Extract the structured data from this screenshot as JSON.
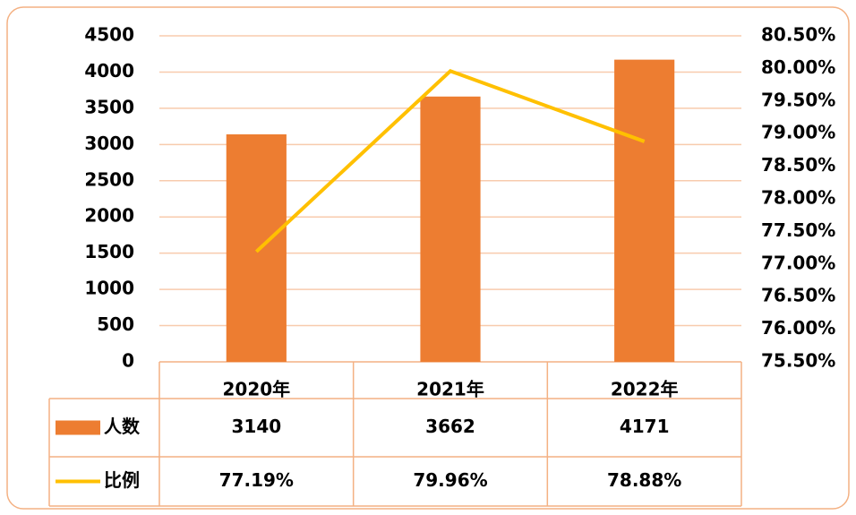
{
  "chart_data": {
    "type": "bar",
    "categories": [
      "2020年",
      "2021年",
      "2022年"
    ],
    "series": [
      {
        "name": "人数",
        "type": "bar",
        "color": "#ed7d31",
        "values": [
          3140,
          3662,
          4171
        ]
      },
      {
        "name": "比例",
        "type": "line",
        "color": "#ffc000",
        "axis": "y2",
        "values": [
          77.19,
          79.96,
          78.88
        ],
        "value_labels": [
          "77.19%",
          "79.96%",
          "78.88%"
        ]
      }
    ],
    "ylim": [
      0,
      4500
    ],
    "yticks": [
      0,
      500,
      1000,
      1500,
      2000,
      2500,
      3000,
      3500,
      4000,
      4500
    ],
    "y2lim": [
      75.5,
      80.5
    ],
    "y2ticks": [
      {
        "value": 75.5,
        "label": "75.50%"
      },
      {
        "value": 76,
        "label": "76.00%"
      },
      {
        "value": 76.5,
        "label": "76.50%"
      },
      {
        "value": 77,
        "label": "77.00%"
      },
      {
        "value": 77.5,
        "label": "77.50%"
      },
      {
        "value": 78,
        "label": "78.00%"
      },
      {
        "value": 78.5,
        "label": "78.50%"
      },
      {
        "value": 79,
        "label": "79.00%"
      },
      {
        "value": 79.5,
        "label": "79.50%"
      },
      {
        "value": 80,
        "label": "80.00%"
      },
      {
        "value": 80.5,
        "label": "80.50%"
      }
    ],
    "grid": true,
    "data_table": true
  }
}
